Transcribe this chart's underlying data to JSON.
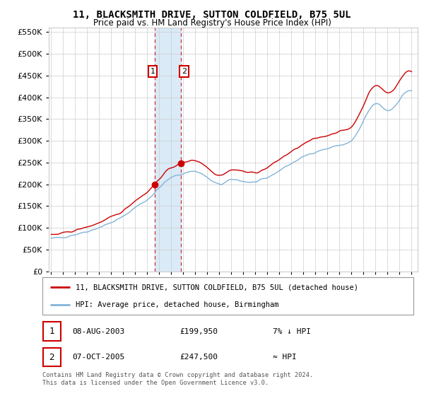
{
  "title": "11, BLACKSMITH DRIVE, SUTTON COLDFIELD, B75 5UL",
  "subtitle": "Price paid vs. HM Land Registry's House Price Index (HPI)",
  "legend_line1": "11, BLACKSMITH DRIVE, SUTTON COLDFIELD, B75 5UL (detached house)",
  "legend_line2": "HPI: Average price, detached house, Birmingham",
  "annotation1": {
    "num": "1",
    "date": "08-AUG-2003",
    "price": "£199,950",
    "hpi": "7% ↓ HPI"
  },
  "annotation2": {
    "num": "2",
    "date": "07-OCT-2005",
    "price": "£247,500",
    "hpi": "≈ HPI"
  },
  "footer": "Contains HM Land Registry data © Crown copyright and database right 2024.\nThis data is licensed under the Open Government Licence v3.0.",
  "sale1_year": 2003.6,
  "sale1_price": 199950,
  "sale2_year": 2005.77,
  "sale2_price": 247500,
  "y_max": 560000,
  "y_min": 0,
  "hpi_color": "#82b4d8",
  "price_color": "#cc0000",
  "background_color": "#ffffff",
  "grid_color": "#cccccc",
  "highlight_color": "#daeaf7",
  "label_box_color": "#cc0000"
}
